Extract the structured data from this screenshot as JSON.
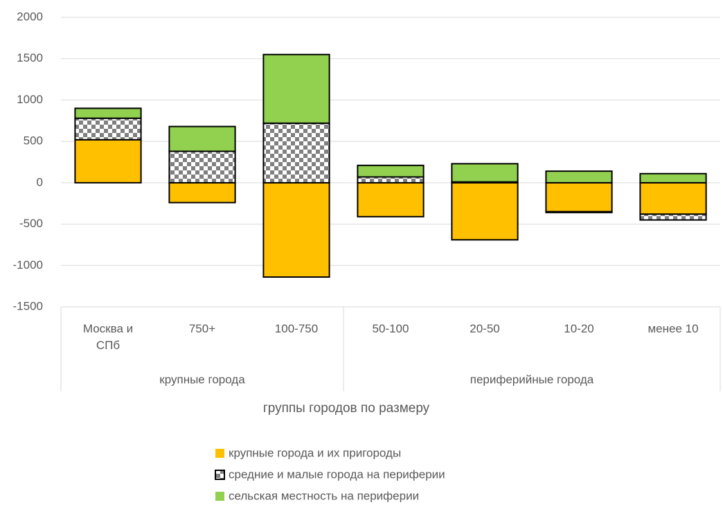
{
  "chart_data": {
    "type": "bar",
    "stacked": true,
    "x_label": "группы городов по размеру",
    "groups": [
      {
        "name": "крупные города",
        "categories": [
          "Москва и СПб",
          "750+",
          "100-750"
        ]
      },
      {
        "name": "периферийные города",
        "categories": [
          "50-100",
          "20-50",
          "10-20",
          "менее 10"
        ]
      }
    ],
    "series": [
      {
        "name": "крупные города и их пригороды",
        "color": "#ffc000",
        "values": [
          520,
          -240,
          -1140,
          -410,
          -690,
          -350,
          -380
        ]
      },
      {
        "name": "средние и малые города на периферии",
        "color": "#808080",
        "pattern": "checker",
        "values": [
          260,
          380,
          720,
          70,
          10,
          -10,
          -70
        ]
      },
      {
        "name": "сельская местность на периферии",
        "color": "#92d050",
        "values": [
          120,
          300,
          830,
          140,
          220,
          140,
          110
        ]
      }
    ],
    "ylim": [
      -1500,
      2000
    ],
    "yticks": [
      -1500,
      -1000,
      -500,
      0,
      500,
      1000,
      1500,
      2000
    ],
    "grid": true,
    "legend": "bottom"
  }
}
